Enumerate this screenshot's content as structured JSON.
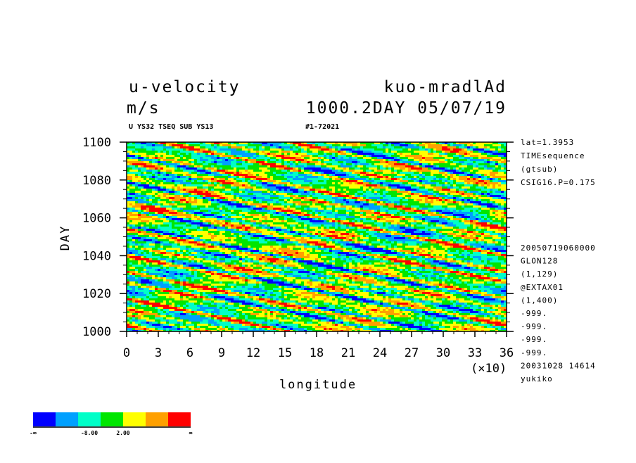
{
  "header": {
    "title_left": "u-velocity",
    "title_right": "kuo-mradlAd",
    "units": "m/s",
    "time_label": "1000.2DAY 05/07/19",
    "subtitle_left": "U YS32 TSEQ SUB YS13",
    "subtitle_right": "#1-72021"
  },
  "side_info": {
    "top": [
      "lat=1.3953",
      "TIMEsequence",
      "(gtsub)",
      "CSIG16.P=0.175"
    ],
    "bottom": [
      "20050719060000",
      "GLON128",
      "(1,129)",
      "@EXTAX01",
      "(1,400)",
      "-999.",
      "-999.",
      "-999.",
      "-999.",
      "20031028  14614",
      "yukiko"
    ]
  },
  "colorbar": {
    "colors": [
      "#0000ff",
      "#00a0ff",
      "#00ffc8",
      "#00e600",
      "#ffff00",
      "#ffa000",
      "#ff0000"
    ],
    "labels": [
      "-∞",
      "-8.00",
      "2.00",
      "∞"
    ]
  },
  "chart_data": {
    "type": "heatmap",
    "title": "u-velocity",
    "xlabel": "longitude",
    "ylabel": "DAY",
    "x_multiplier_label": "(×10)",
    "xlim": [
      0,
      36
    ],
    "ylim": [
      1000,
      1100
    ],
    "x_ticks": [
      "0",
      "3",
      "6",
      "9",
      "12",
      "15",
      "18",
      "21",
      "24",
      "27",
      "30",
      "33",
      "36"
    ],
    "y_ticks": [
      "1000",
      "1020",
      "1040",
      "1060",
      "1080",
      "1100"
    ],
    "x_tick_values": [
      0,
      3,
      6,
      9,
      12,
      15,
      18,
      21,
      24,
      27,
      30,
      33,
      36
    ],
    "y_tick_values": [
      1000,
      1020,
      1040,
      1060,
      1080,
      1100
    ],
    "color_levels": [
      -8.0,
      2.0
    ],
    "grid": false
  }
}
